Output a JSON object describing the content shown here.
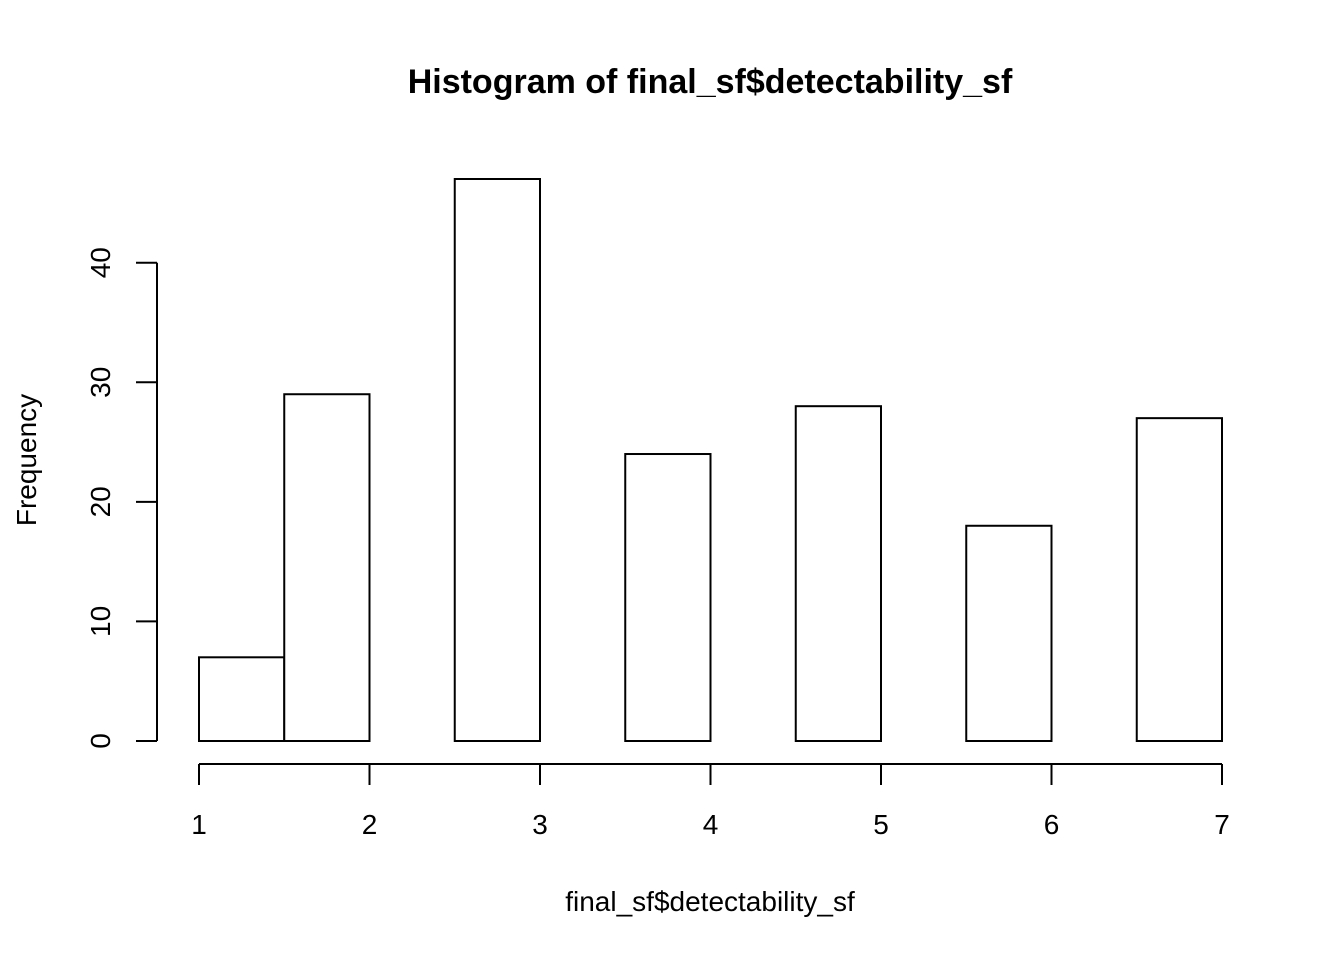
{
  "chart_data": {
    "type": "bar",
    "title": "Histogram of final_sf$detectability_sf",
    "xlabel": "final_sf$detectability_sf",
    "ylabel": "Frequency",
    "bins": [
      {
        "start": 1.0,
        "end": 1.5,
        "count": 7
      },
      {
        "start": 1.5,
        "end": 2.0,
        "count": 29
      },
      {
        "start": 2.0,
        "end": 2.5,
        "count": 0
      },
      {
        "start": 2.5,
        "end": 3.0,
        "count": 47
      },
      {
        "start": 3.0,
        "end": 3.5,
        "count": 0
      },
      {
        "start": 3.5,
        "end": 4.0,
        "count": 24
      },
      {
        "start": 4.0,
        "end": 4.5,
        "count": 0
      },
      {
        "start": 4.5,
        "end": 5.0,
        "count": 28
      },
      {
        "start": 5.0,
        "end": 5.5,
        "count": 0
      },
      {
        "start": 5.5,
        "end": 6.0,
        "count": 18
      },
      {
        "start": 6.0,
        "end": 6.5,
        "count": 0
      },
      {
        "start": 6.5,
        "end": 7.0,
        "count": 27
      }
    ],
    "x_ticks": [
      1,
      2,
      3,
      4,
      5,
      6,
      7
    ],
    "y_ticks": [
      0,
      10,
      20,
      30,
      40
    ],
    "xlim": [
      1,
      7
    ],
    "ylim": [
      0,
      47
    ],
    "grid": false,
    "legend": "none"
  }
}
